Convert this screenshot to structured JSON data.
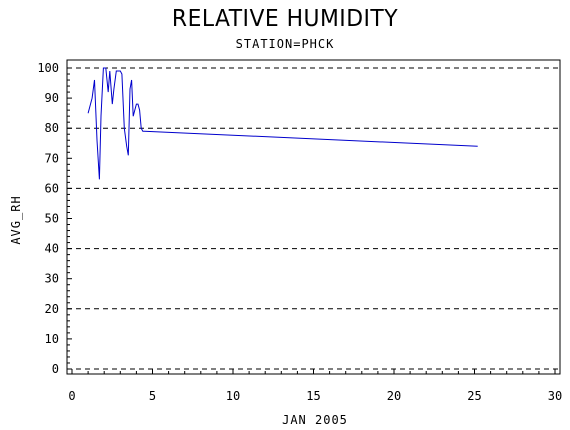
{
  "chart_data": {
    "type": "line",
    "title": "RELATIVE HUMIDITY",
    "subtitle": "STATION=PHCK",
    "xlabel": "JAN 2005",
    "ylabel": "AVG_RH",
    "xlim": [
      0,
      30
    ],
    "ylim": [
      0,
      100
    ],
    "xticks": [
      0,
      5,
      10,
      15,
      20,
      25,
      30
    ],
    "yticks": [
      0,
      10,
      20,
      30,
      40,
      50,
      60,
      70,
      80,
      90,
      100
    ],
    "grid_y": [
      0,
      20,
      40,
      60,
      80,
      100
    ],
    "grid": "horizontal dashed",
    "series": [
      {
        "color": "#0000cc",
        "x": [
          1.0,
          1.15,
          1.25,
          1.4,
          1.55,
          1.7,
          1.8,
          1.95,
          2.1,
          2.25,
          2.35,
          2.5,
          2.6,
          2.75,
          2.85,
          3.0,
          3.1,
          3.25,
          3.4,
          3.5,
          3.6,
          3.7,
          3.8,
          3.9,
          4.0,
          4.1,
          4.2,
          4.3,
          4.4,
          4.5,
          25.2
        ],
        "y": [
          85,
          88,
          90,
          96,
          76,
          63,
          84,
          100,
          100,
          92,
          99,
          88,
          93,
          99,
          99,
          99,
          98,
          80,
          74,
          71,
          93,
          96,
          84,
          86,
          88,
          88,
          86,
          80,
          79,
          79,
          74
        ]
      }
    ]
  }
}
